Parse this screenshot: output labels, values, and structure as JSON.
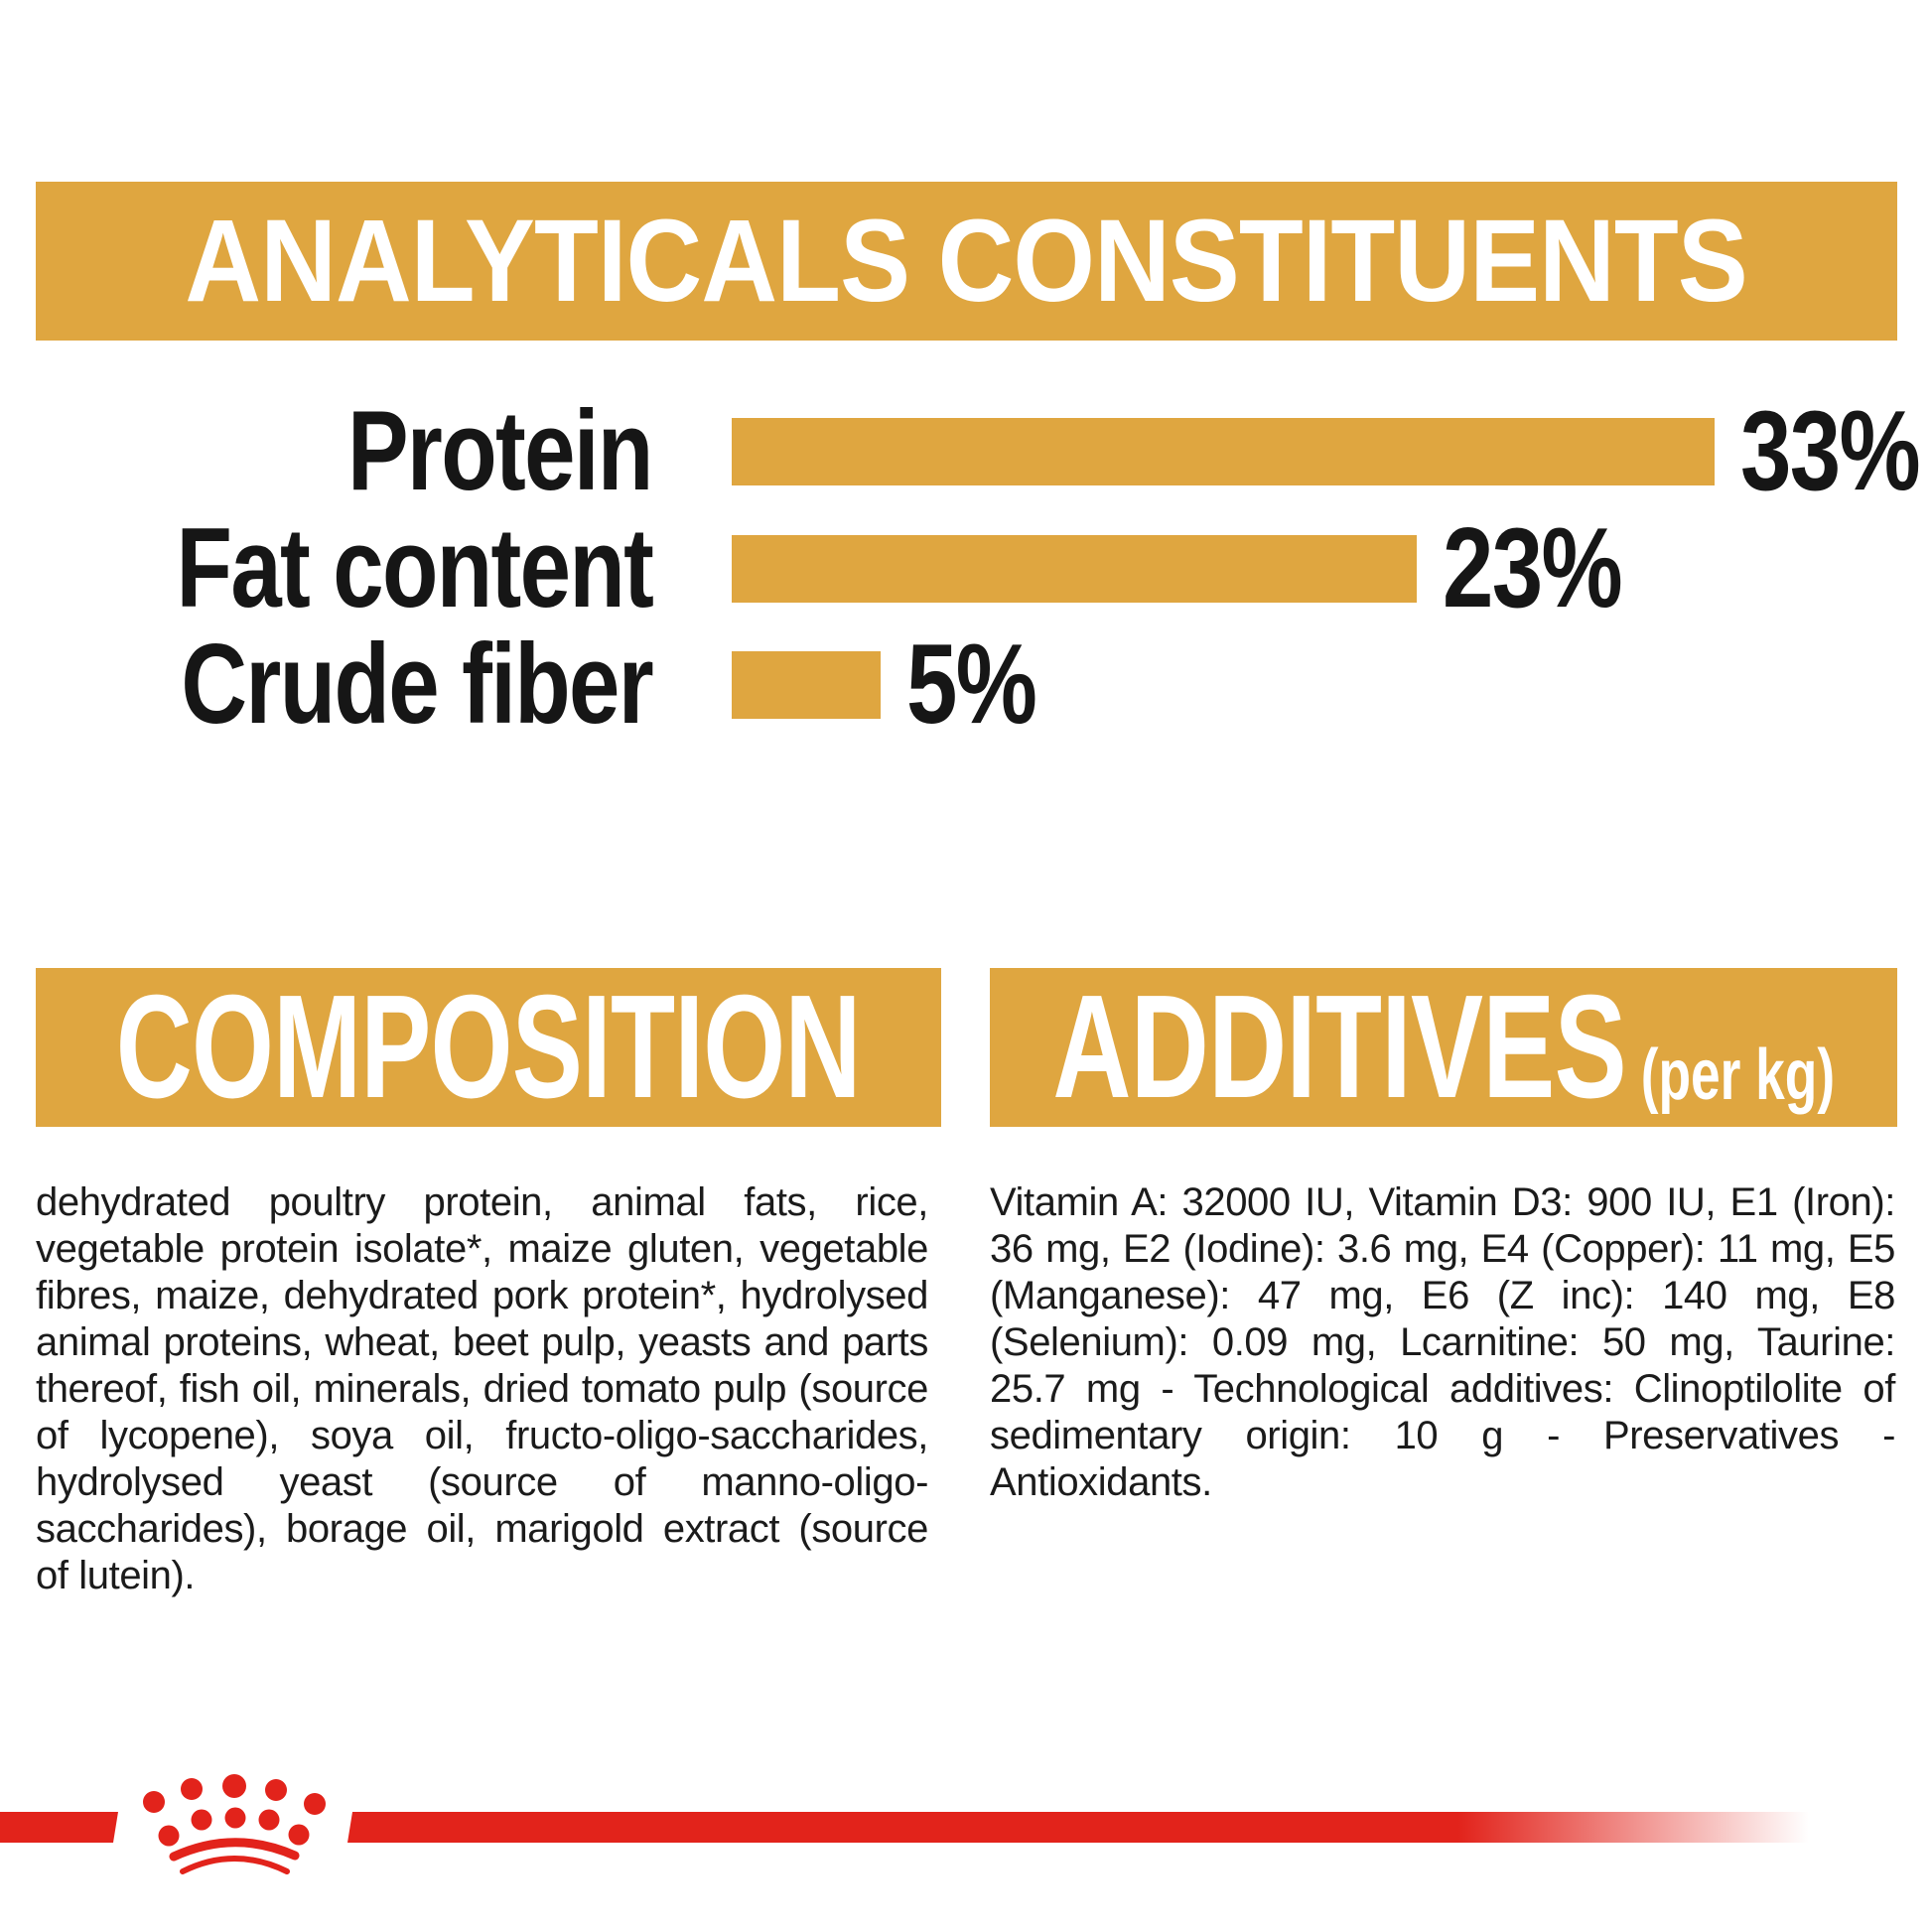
{
  "colors": {
    "gold": "#DFA640",
    "red": "#E2231B",
    "ink": "#161616",
    "white": "#FFFFFF"
  },
  "analyticals": {
    "title": "ANALYTICALS CONSTITUENTS"
  },
  "chart_data": {
    "type": "bar",
    "orientation": "horizontal",
    "categories": [
      "Protein",
      "Fat content",
      "Crude fiber"
    ],
    "values": [
      33,
      23,
      5
    ],
    "value_labels": [
      "33%",
      "23%",
      "5%"
    ],
    "unit": "%",
    "xlim": [
      0,
      33
    ],
    "bar_color": "#DFA640",
    "title": "ANALYTICALS CONSTITUENTS",
    "legend": "none",
    "grid": "off"
  },
  "composition": {
    "title": "COMPOSITION",
    "body": "dehydrated poultry protein, animal fats, rice, vegetable protein isolate*, maize gluten, vegetable fibres, maize, dehydrated pork protein*, hydrolysed animal proteins, wheat, beet pulp, yeasts and parts thereof, fish oil, minerals, dried tomato pulp (source of lycopene), soya oil, fructo-oligo-saccharides, hydrolysed yeast (source of manno-oligo-saccharides), borage oil, marigold extract (source of lutein)."
  },
  "additives": {
    "title": "ADDITIVES",
    "title_suffix": "(per kg)",
    "body": "Vitamin A: 32000 IU, Vitamin D3: 900 IU, E1 (Iron): 36 mg, E2 (Iodine): 3.6 mg, E4 (Copper): 11 mg, E5 (Manganese): 47 mg, E6 (Z inc): 140 mg, E8 (Selenium): 0.09 mg, Lcarnitine: 50 mg, Taurine: 25.7 mg - Technological additives: Clinoptilolite of sedimentary origin: 10 g - Preservatives - Antioxidants."
  },
  "footer": {
    "brand_logo": "royal-canin-crown"
  }
}
